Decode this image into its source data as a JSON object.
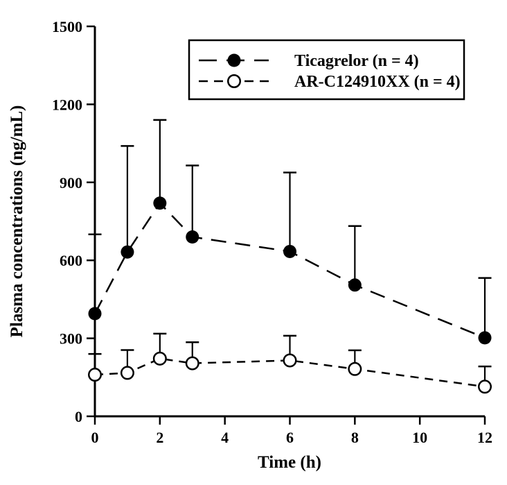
{
  "chart_data": {
    "type": "line",
    "title": "",
    "xlabel": "Time (h)",
    "ylabel": "Plasma concentrations (ng/mL)",
    "xlim": [
      0,
      12
    ],
    "ylim": [
      0,
      1500
    ],
    "x_ticks": [
      0,
      2,
      4,
      6,
      8,
      10,
      12
    ],
    "y_ticks": [
      0,
      300,
      600,
      900,
      1200,
      1500
    ],
    "grid": false,
    "error_bars": "upper-only",
    "legend_position": "top-center-inside",
    "x": [
      0,
      1,
      2,
      3,
      6,
      8,
      12
    ],
    "series": [
      {
        "name": "Ticagrelor (n = 4)",
        "marker": "filled-circle",
        "line_style": "long-dash",
        "values": [
          395,
          632,
          820,
          690,
          634,
          505,
          302
        ],
        "upper_errors": [
          305,
          408,
          320,
          275,
          304,
          227,
          230
        ]
      },
      {
        "name": "AR-C124910XX (n = 4)",
        "marker": "open-circle",
        "line_style": "short-dash",
        "values": [
          160,
          167,
          222,
          204,
          215,
          182,
          114
        ],
        "upper_errors": [
          80,
          88,
          96,
          81,
          95,
          72,
          78
        ]
      }
    ],
    "colors": {
      "foreground": "#000000",
      "background": "#ffffff"
    }
  }
}
